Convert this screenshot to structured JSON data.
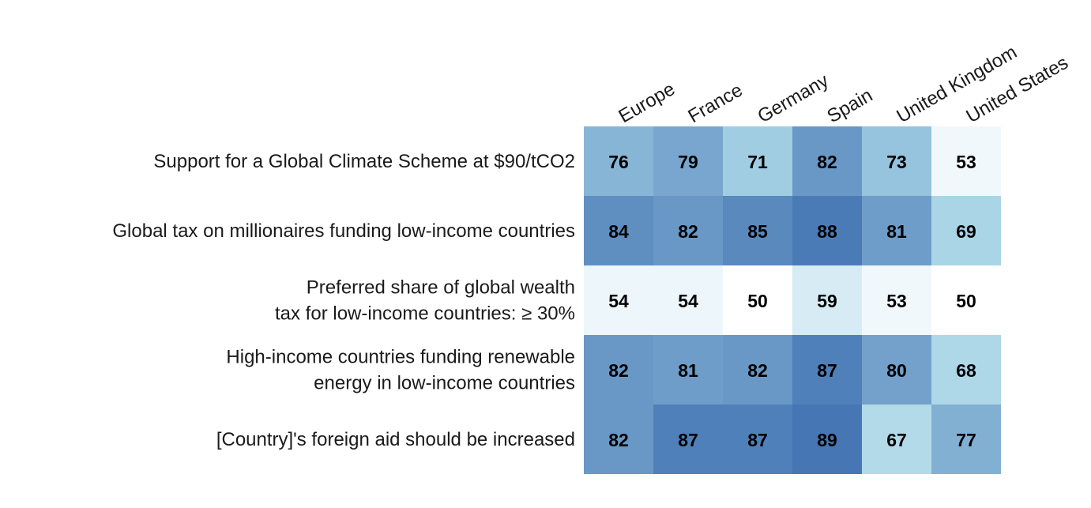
{
  "chart_data": {
    "type": "heatmap",
    "columns": [
      "Europe",
      "France",
      "Germany",
      "Spain",
      "United Kingdom",
      "United States"
    ],
    "rows": [
      {
        "label_lines": [
          "Support for a Global Climate Scheme at $90/tCO2"
        ],
        "values": [
          76,
          79,
          71,
          82,
          73,
          53
        ]
      },
      {
        "label_lines": [
          "Global tax on millionaires funding low-income countries"
        ],
        "values": [
          84,
          82,
          85,
          88,
          81,
          69
        ]
      },
      {
        "label_lines": [
          "Preferred share of global wealth",
          "tax for low-income countries: ≥ 30%"
        ],
        "values": [
          54,
          54,
          50,
          59,
          53,
          50
        ]
      },
      {
        "label_lines": [
          "High-income countries funding renewable",
          "energy in low-income countries"
        ],
        "values": [
          82,
          81,
          82,
          87,
          80,
          68
        ]
      },
      {
        "label_lines": [
          "[Country]'s foreign aid should be increased"
        ],
        "values": [
          82,
          87,
          87,
          89,
          67,
          77
        ]
      }
    ],
    "color_scale": {
      "domain": [
        50,
        89
      ],
      "low_color": "#ffffff",
      "mid_color": "#a7d4e6",
      "high_color": "#4676b4"
    },
    "title": "",
    "xlabel": "",
    "ylabel": ""
  }
}
